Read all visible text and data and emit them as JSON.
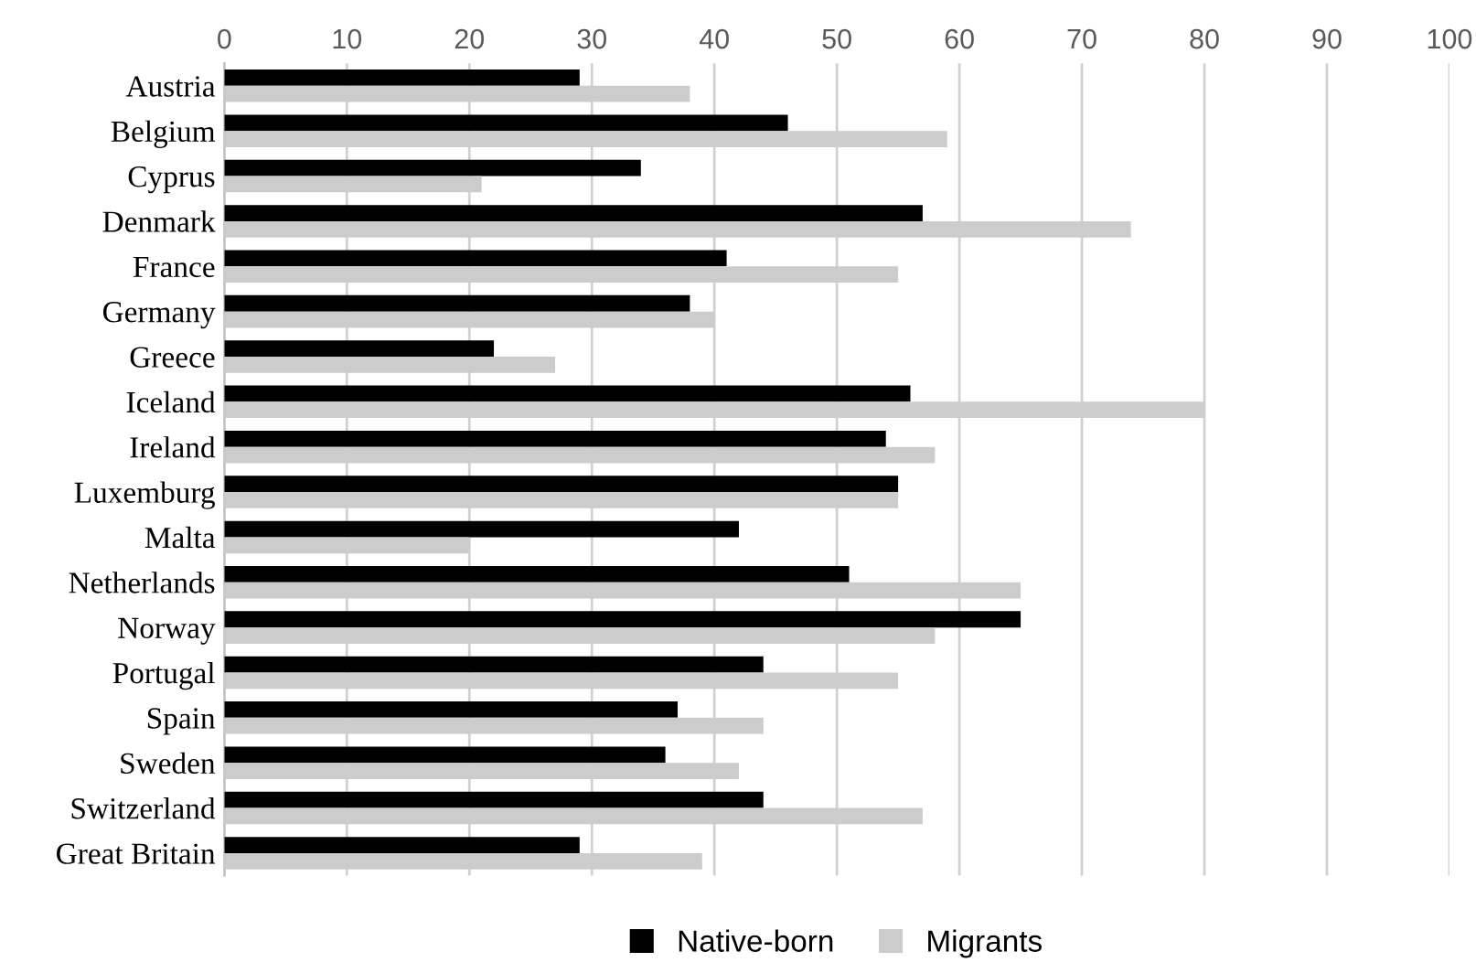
{
  "chart_data": {
    "type": "bar",
    "orientation": "horizontal",
    "categories": [
      "Austria",
      "Belgium",
      "Cyprus",
      "Denmark",
      "France",
      "Germany",
      "Greece",
      "Iceland",
      "Ireland",
      "Luxemburg",
      "Malta",
      "Netherlands",
      "Norway",
      "Portugal",
      "Spain",
      "Sweden",
      "Switzerland",
      "Great Britain"
    ],
    "series": [
      {
        "name": "Native-born",
        "color": "#000000",
        "values": [
          29,
          46,
          34,
          57,
          41,
          38,
          22,
          56,
          54,
          55,
          42,
          51,
          65,
          44,
          37,
          36,
          44,
          29
        ]
      },
      {
        "name": "Migrants",
        "color": "#cccccc",
        "values": [
          38,
          59,
          21,
          74,
          55,
          40,
          27,
          80,
          58,
          55,
          20,
          65,
          58,
          55,
          44,
          42,
          57,
          39
        ]
      }
    ],
    "xlim": [
      0,
      100
    ],
    "xticks": [
      0,
      10,
      20,
      30,
      40,
      50,
      60,
      70,
      80,
      90,
      100
    ],
    "grid": "x",
    "legend": "bottom"
  }
}
